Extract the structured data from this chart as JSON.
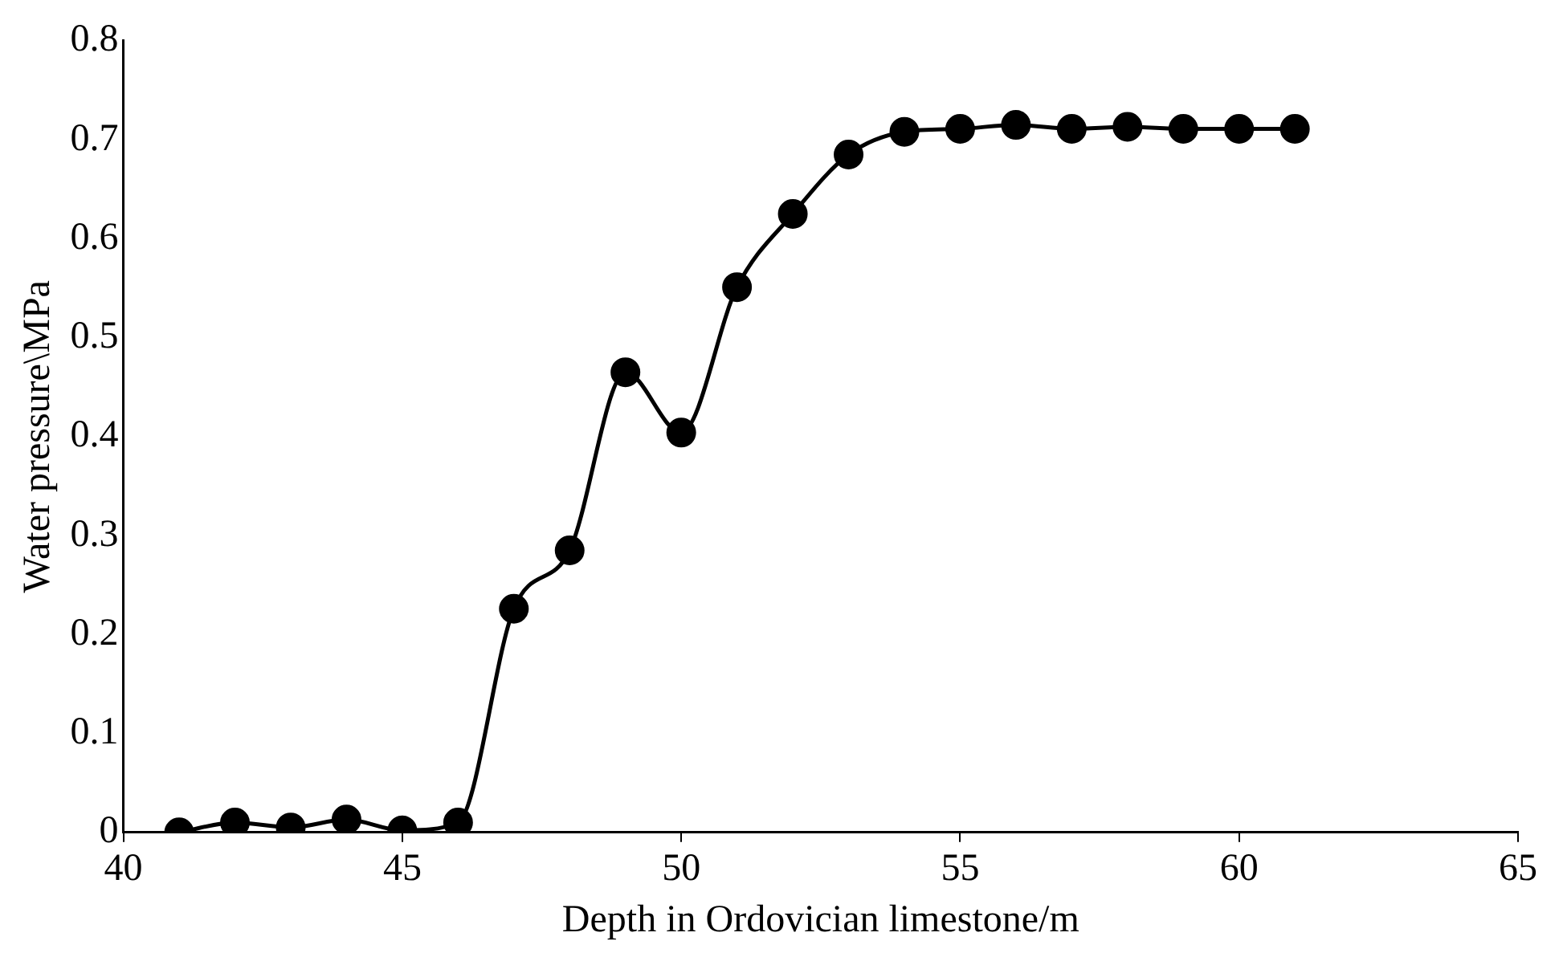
{
  "chart_data": {
    "type": "line",
    "xlabel": "Depth in Ordovician limestone/m",
    "ylabel": "Water pressure\\MPa",
    "x": [
      41,
      42,
      43,
      44,
      45,
      46,
      47,
      48,
      49,
      50,
      51,
      52,
      53,
      54,
      55,
      56,
      57,
      58,
      59,
      60,
      61
    ],
    "series": [
      {
        "color": "#000000",
        "values": [
          0,
          0.01,
          0.005,
          0.013,
          0.002,
          0.01,
          0.226,
          0.285,
          0.465,
          0.404,
          0.551,
          0.625,
          0.685,
          0.708,
          0.711,
          0.715,
          0.711,
          0.713,
          0.711,
          0.711,
          0.711
        ]
      }
    ],
    "xlim": [
      40,
      65
    ],
    "xticks": [
      40,
      45,
      50,
      55,
      60,
      65
    ],
    "ylim": [
      0,
      0.8
    ],
    "yticks": [
      0,
      0.1,
      0.2,
      0.3,
      0.4,
      0.5,
      0.6,
      0.7,
      0.8
    ],
    "marker": "circle",
    "line_style": "solid",
    "grid": false,
    "legend": false
  }
}
